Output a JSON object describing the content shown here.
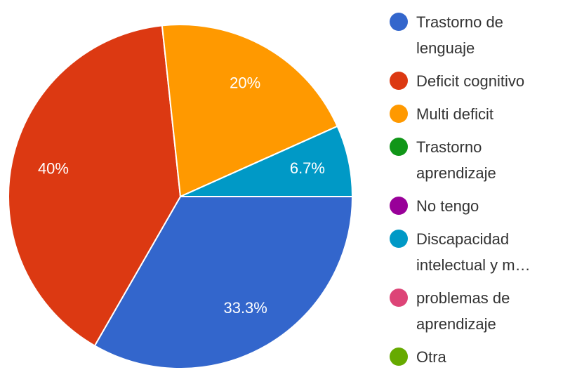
{
  "chart_data": {
    "type": "pie",
    "categories": [
      "Trastorno de lenguaje",
      "Deficit cognitivo",
      "Multi deficit",
      "Trastorno aprendizaje",
      "No tengo",
      "Discapacidad intelectual y m…",
      "problemas de aprendizaje",
      "Otra"
    ],
    "values": [
      33.3,
      40,
      20,
      0,
      0,
      6.7,
      0,
      0
    ],
    "value_labels": [
      "33.3%",
      "40%",
      "20%",
      null,
      null,
      "6.7%",
      null,
      null
    ],
    "colors": [
      "#3366cc",
      "#dc3912",
      "#ff9900",
      "#109618",
      "#990099",
      "#0099c6",
      "#dd4477",
      "#66aa00"
    ]
  }
}
